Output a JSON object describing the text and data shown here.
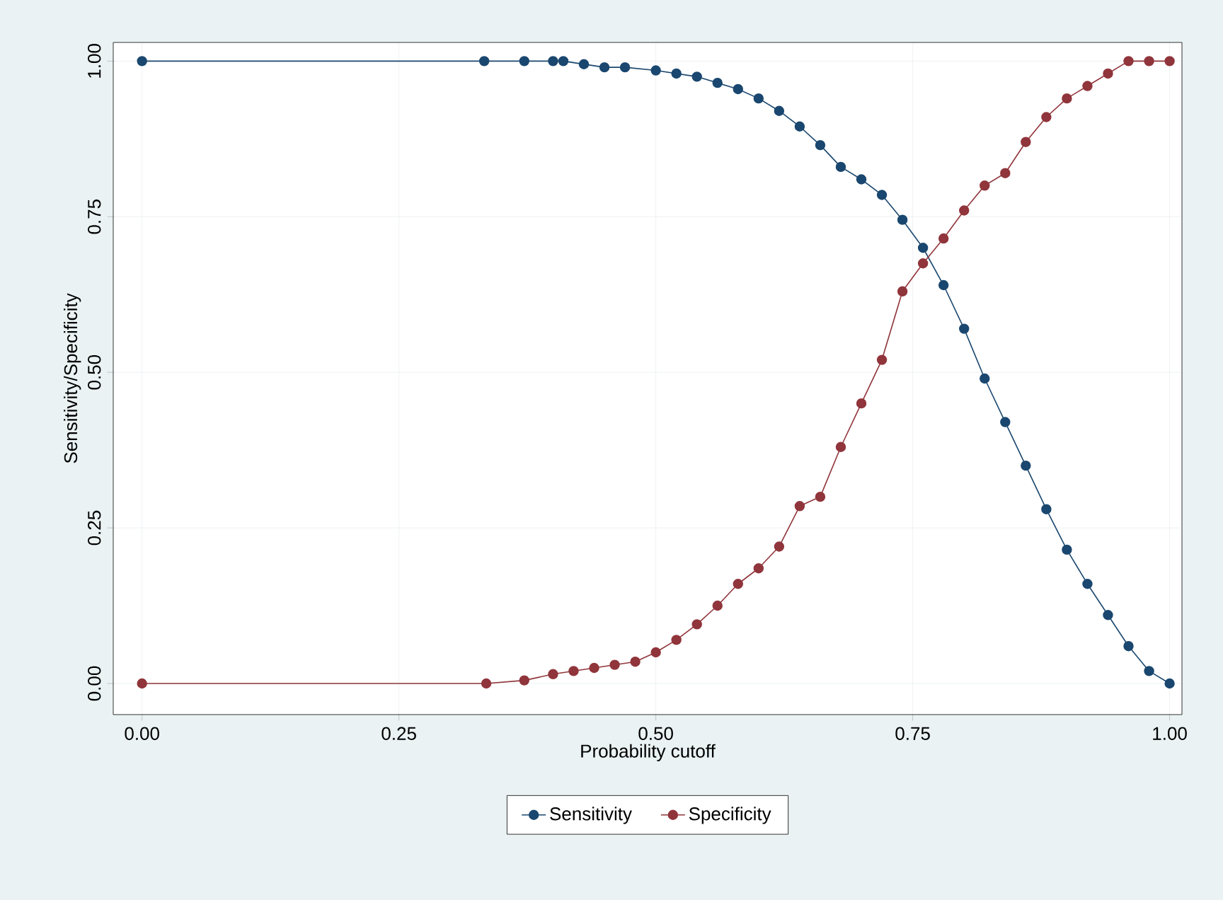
{
  "chart_data": {
    "type": "line",
    "xlabel": "Probability cutoff",
    "ylabel": "Sensitivity/Specificity",
    "xlim": [
      -0.028,
      1.012
    ],
    "ylim": [
      -0.05,
      1.03
    ],
    "xticks": [
      {
        "value": 0,
        "label": "0.00"
      },
      {
        "value": 0.25,
        "label": "0.25"
      },
      {
        "value": 0.5,
        "label": "0.50"
      },
      {
        "value": 0.75,
        "label": "0.75"
      },
      {
        "value": 1,
        "label": "1.00"
      }
    ],
    "yticks": [
      {
        "value": 0,
        "label": "0.00"
      },
      {
        "value": 0.25,
        "label": "0.25"
      },
      {
        "value": 0.5,
        "label": "0.50"
      },
      {
        "value": 0.75,
        "label": "0.75"
      },
      {
        "value": 1,
        "label": "1.00"
      }
    ],
    "grid": true,
    "legend": "bottom",
    "marker": "circle",
    "line_style": "solid",
    "series": [
      {
        "name": "Sensitivity",
        "color": "#1a476f",
        "x": [
          0,
          0.333,
          0.372,
          0.4,
          0.41,
          0.43,
          0.45,
          0.47,
          0.5,
          0.52,
          0.54,
          0.56,
          0.58,
          0.6,
          0.62,
          0.64,
          0.66,
          0.68,
          0.7,
          0.72,
          0.74,
          0.76,
          0.78,
          0.8,
          0.82,
          0.84,
          0.86,
          0.88,
          0.9,
          0.92,
          0.94,
          0.96,
          0.98,
          1.0
        ],
        "values": [
          1,
          1,
          1,
          1,
          1,
          0.995,
          0.99,
          0.99,
          0.985,
          0.98,
          0.975,
          0.965,
          0.955,
          0.94,
          0.92,
          0.895,
          0.865,
          0.83,
          0.81,
          0.785,
          0.745,
          0.7,
          0.64,
          0.57,
          0.49,
          0.42,
          0.35,
          0.28,
          0.215,
          0.16,
          0.11,
          0.06,
          0.02,
          0
        ]
      },
      {
        "name": "Specificity",
        "color": "#90353b",
        "x": [
          0,
          0.335,
          0.372,
          0.4,
          0.42,
          0.44,
          0.46,
          0.48,
          0.5,
          0.52,
          0.54,
          0.56,
          0.58,
          0.6,
          0.62,
          0.64,
          0.66,
          0.68,
          0.7,
          0.72,
          0.74,
          0.76,
          0.78,
          0.8,
          0.82,
          0.84,
          0.86,
          0.88,
          0.9,
          0.92,
          0.94,
          0.96,
          0.98,
          1.0
        ],
        "values": [
          0,
          0,
          0.005,
          0.015,
          0.02,
          0.025,
          0.03,
          0.035,
          0.05,
          0.07,
          0.095,
          0.125,
          0.16,
          0.185,
          0.22,
          0.285,
          0.3,
          0.38,
          0.45,
          0.52,
          0.63,
          0.675,
          0.715,
          0.76,
          0.8,
          0.82,
          0.87,
          0.91,
          0.94,
          0.96,
          0.98,
          1,
          1,
          1
        ]
      }
    ]
  }
}
